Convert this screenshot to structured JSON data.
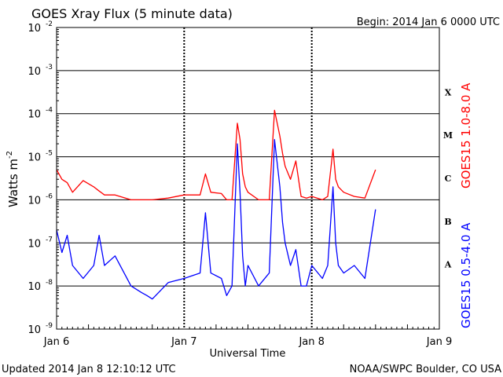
{
  "header": {
    "title": "GOES Xray Flux (5 minute data)",
    "begin": "Begin:  2014 Jan 6 0000 UTC"
  },
  "footer": {
    "updated": "Updated 2014 Jan  8 12:10:12 UTC",
    "credit": "NOAA/SWPC Boulder, CO USA"
  },
  "chart_data": {
    "type": "line",
    "title": "GOES Xray Flux (5 minute data)",
    "xlabel": "Universal Time",
    "ylabel_main": "Watts m",
    "ylabel_sup": "-2",
    "y_scale": "log",
    "ylim": [
      1e-09,
      0.01
    ],
    "xlim": [
      "2014-01-06 00:00",
      "2014-01-09 00:00"
    ],
    "x_tick_labels": [
      "Jan 6",
      "Jan 7",
      "Jan 8",
      "Jan 9"
    ],
    "y_ticks": [
      {
        "base": "10",
        "exp": "-2"
      },
      {
        "base": "10",
        "exp": "-3"
      },
      {
        "base": "10",
        "exp": "-4"
      },
      {
        "base": "10",
        "exp": "-5"
      },
      {
        "base": "10",
        "exp": "-6"
      },
      {
        "base": "10",
        "exp": "-7"
      },
      {
        "base": "10",
        "exp": "-8"
      },
      {
        "base": "10",
        "exp": "-9"
      }
    ],
    "flare_classes": [
      "X",
      "M",
      "C",
      "B",
      "A"
    ],
    "grid": "horizontal at each decade; dashed vertical at day boundaries",
    "series": [
      {
        "name": "GOES15 1.0-8.0 A",
        "color": "#ff0000",
        "x": [
          "2014-01-06 00:00",
          "2014-01-06 01:00",
          "2014-01-06 02:00",
          "2014-01-06 03:00",
          "2014-01-06 05:00",
          "2014-01-06 07:00",
          "2014-01-06 08:00",
          "2014-01-06 09:00",
          "2014-01-06 11:00",
          "2014-01-06 14:00",
          "2014-01-06 16:00",
          "2014-01-06 17:00",
          "2014-01-06 18:00",
          "2014-01-06 21:00",
          "2014-01-07 00:00",
          "2014-01-07 03:00",
          "2014-01-07 04:00",
          "2014-01-07 05:00",
          "2014-01-07 07:00",
          "2014-01-07 08:00",
          "2014-01-07 09:00",
          "2014-01-07 10:00",
          "2014-01-07 10:30",
          "2014-01-07 11:00",
          "2014-01-07 11:30",
          "2014-01-07 12:00",
          "2014-01-07 14:00",
          "2014-01-07 16:00",
          "2014-01-07 17:00",
          "2014-01-07 18:00",
          "2014-01-07 18:30",
          "2014-01-07 19:00",
          "2014-01-07 20:00",
          "2014-01-07 21:00",
          "2014-01-07 22:00",
          "2014-01-07 23:00",
          "2014-01-08 00:00",
          "2014-01-08 02:00",
          "2014-01-08 03:00",
          "2014-01-08 04:00",
          "2014-01-08 04:30",
          "2014-01-08 05:00",
          "2014-01-08 06:00",
          "2014-01-08 08:00",
          "2014-01-08 10:00",
          "2014-01-08 12:00"
        ],
        "values": [
          5e-06,
          3e-06,
          2.5e-06,
          1.5e-06,
          2.8e-06,
          2e-06,
          1.6e-06,
          1.3e-06,
          1.3e-06,
          1e-06,
          1e-06,
          1e-06,
          1e-06,
          1.1e-06,
          1.3e-06,
          1.3e-06,
          4e-06,
          1.5e-06,
          1.4e-06,
          1e-06,
          1e-06,
          6e-05,
          2.5e-05,
          4e-06,
          2e-06,
          1.5e-06,
          1e-06,
          1e-06,
          0.00012,
          3e-05,
          1.2e-05,
          6e-06,
          3e-06,
          8e-06,
          1.2e-06,
          1.1e-06,
          1.2e-06,
          1e-06,
          1.2e-06,
          1.5e-05,
          3e-06,
          2e-06,
          1.5e-06,
          1.2e-06,
          1.1e-06,
          5e-06
        ]
      },
      {
        "name": "GOES15 0.5-4.0 A",
        "color": "#0000ff",
        "x": [
          "2014-01-06 00:00",
          "2014-01-06 01:00",
          "2014-01-06 02:00",
          "2014-01-06 03:00",
          "2014-01-06 05:00",
          "2014-01-06 07:00",
          "2014-01-06 08:00",
          "2014-01-06 09:00",
          "2014-01-06 11:00",
          "2014-01-06 14:00",
          "2014-01-06 16:00",
          "2014-01-06 17:00",
          "2014-01-06 18:00",
          "2014-01-06 21:00",
          "2014-01-07 00:00",
          "2014-01-07 03:00",
          "2014-01-07 04:00",
          "2014-01-07 05:00",
          "2014-01-07 07:00",
          "2014-01-07 08:00",
          "2014-01-07 09:00",
          "2014-01-07 10:00",
          "2014-01-07 10:30",
          "2014-01-07 11:00",
          "2014-01-07 11:30",
          "2014-01-07 12:00",
          "2014-01-07 14:00",
          "2014-01-07 16:00",
          "2014-01-07 17:00",
          "2014-01-07 18:00",
          "2014-01-07 18:30",
          "2014-01-07 19:00",
          "2014-01-07 20:00",
          "2014-01-07 21:00",
          "2014-01-07 22:00",
          "2014-01-07 23:00",
          "2014-01-08 00:00",
          "2014-01-08 02:00",
          "2014-01-08 03:00",
          "2014-01-08 04:00",
          "2014-01-08 04:30",
          "2014-01-08 05:00",
          "2014-01-08 06:00",
          "2014-01-08 08:00",
          "2014-01-08 10:00",
          "2014-01-08 12:00"
        ],
        "values": [
          2e-07,
          6e-08,
          1.5e-07,
          3e-08,
          1.5e-08,
          3e-08,
          1.5e-07,
          3e-08,
          5e-08,
          1e-08,
          7e-09,
          6e-09,
          5e-09,
          1.2e-08,
          1.5e-08,
          2e-08,
          5e-07,
          2e-08,
          1.5e-08,
          6e-09,
          1e-08,
          2e-05,
          1.5e-06,
          5e-08,
          1e-08,
          3e-08,
          1e-08,
          2e-08,
          2.5e-05,
          2e-06,
          3e-07,
          1e-07,
          3e-08,
          7e-08,
          1e-08,
          1e-08,
          3e-08,
          1.5e-08,
          3e-08,
          2e-06,
          1e-07,
          3e-08,
          2e-08,
          3e-08,
          1.5e-08,
          6e-07
        ]
      }
    ]
  }
}
